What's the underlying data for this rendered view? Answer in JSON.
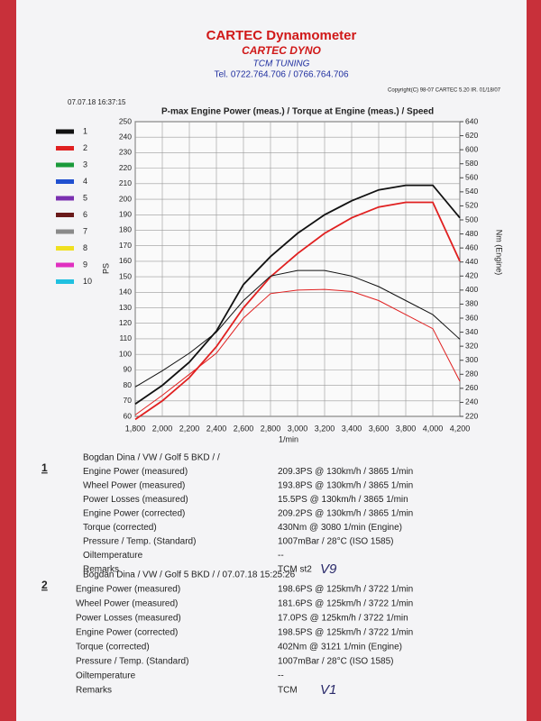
{
  "header": {
    "title": "CARTEC Dynamometer",
    "subtitle": "CARTEC DYNO",
    "tuner": "TCM TUNING",
    "phone": "Tel. 0722.764.706 / 0766.764.706",
    "timestamp": "07.07.18 16:37:15",
    "copyright": "Copyright(C) 98-07 CARTEC 5.20 IR. 01/18/07"
  },
  "chart_data": {
    "type": "line",
    "title": "P-max Engine Power (meas.) / Torque at Engine (meas.) / Speed",
    "x_label": "1/min",
    "y_label": "PS",
    "y2_label": "Nm (Engine)",
    "x": [
      1800,
      2000,
      2200,
      2400,
      2600,
      2800,
      3000,
      3200,
      3400,
      3600,
      3800,
      4000,
      4200
    ],
    "xlim": [
      1800,
      4200
    ],
    "xticks": [
      {
        "value": 1800,
        "label": "1,800"
      },
      {
        "value": 2000,
        "label": "2,000"
      },
      {
        "value": 2200,
        "label": "2,200"
      },
      {
        "value": 2400,
        "label": "2,400"
      },
      {
        "value": 2600,
        "label": "2,600"
      },
      {
        "value": 2800,
        "label": "2,800"
      },
      {
        "value": 3000,
        "label": "3,000"
      },
      {
        "value": 3200,
        "label": "3,200"
      },
      {
        "value": 3400,
        "label": "3,400"
      },
      {
        "value": 3600,
        "label": "3,600"
      },
      {
        "value": 3800,
        "label": "3,800"
      },
      {
        "value": 4000,
        "label": "4,000"
      },
      {
        "value": 4200,
        "label": "4,200"
      }
    ],
    "ylim": [
      60,
      250
    ],
    "yticks": [
      60,
      70,
      80,
      90,
      100,
      110,
      120,
      130,
      140,
      150,
      160,
      170,
      180,
      190,
      200,
      210,
      220,
      230,
      240,
      250
    ],
    "y2lim": [
      220,
      640
    ],
    "y2ticks": [
      220,
      240,
      260,
      280,
      300,
      320,
      340,
      360,
      380,
      400,
      420,
      440,
      460,
      480,
      500,
      520,
      540,
      560,
      580,
      600,
      620,
      640
    ],
    "grid": true,
    "series": [
      {
        "name": "1",
        "color": "#111111",
        "values": [
          68,
          80,
          95,
          115,
          145,
          163,
          178,
          190,
          199,
          206,
          209,
          209,
          188
        ]
      },
      {
        "name": "2",
        "color": "#e02020",
        "values": [
          58,
          70,
          85,
          105,
          130,
          150,
          165,
          178,
          188,
          195,
          198,
          198,
          160
        ]
      },
      {
        "name": "1",
        "color": "#111111",
        "axis": "y2",
        "values": [
          262,
          285,
          310,
          340,
          385,
          420,
          428,
          428,
          420,
          405,
          385,
          365,
          330
        ]
      },
      {
        "name": "2",
        "color": "#e02020",
        "axis": "y2",
        "values": [
          222,
          250,
          280,
          310,
          360,
          395,
          400,
          401,
          398,
          385,
          365,
          345,
          270
        ]
      }
    ],
    "legend": [
      {
        "label": "1",
        "color": "#111111"
      },
      {
        "label": "2",
        "color": "#e02020"
      },
      {
        "label": "3",
        "color": "#1a9a3a"
      },
      {
        "label": "4",
        "color": "#2050d0"
      },
      {
        "label": "5",
        "color": "#7a30b0"
      },
      {
        "label": "6",
        "color": "#6a1a1a"
      },
      {
        "label": "7",
        "color": "#8a8a8a"
      },
      {
        "label": "8",
        "color": "#f0e020"
      },
      {
        "label": "9",
        "color": "#e030c0"
      },
      {
        "label": "10",
        "color": "#20c0e0"
      }
    ]
  },
  "reports": [
    {
      "number": "1",
      "title": "Bogdan Dina / VW / Golf 5 BKD /  /",
      "handwritten": "V9",
      "rows": [
        [
          "Engine Power (measured)",
          "209.3PS @ 130km/h / 3865 1/min"
        ],
        [
          "Wheel Power (measured)",
          "193.8PS @ 130km/h / 3865 1/min"
        ],
        [
          "Power Losses (measured)",
          "15.5PS @ 130km/h / 3865 1/min"
        ],
        [
          "Engine Power (corrected)",
          "209.2PS @ 130km/h / 3865 1/min"
        ],
        [
          "Torque (corrected)",
          "430Nm @ 3080 1/min (Engine)"
        ],
        [
          "Pressure / Temp. (Standard)",
          "1007mBar / 28°C   (ISO 1585)"
        ],
        [
          "Oiltemperature",
          "--"
        ],
        [
          "Remarks",
          "TCM st2"
        ]
      ]
    },
    {
      "number": "2",
      "title": "Bogdan Dina / VW / Golf 5 BKD /  / 07.07.18 15:25:26",
      "handwritten": "V1",
      "rows": [
        [
          "Engine Power (measured)",
          "198.6PS @ 125km/h / 3722 1/min"
        ],
        [
          "Wheel Power (measured)",
          "181.6PS @ 125km/h / 3722 1/min"
        ],
        [
          "Power Losses (measured)",
          "17.0PS @ 125km/h / 3722 1/min"
        ],
        [
          "Engine Power (corrected)",
          "198.5PS @ 125km/h / 3722 1/min"
        ],
        [
          "Torque (corrected)",
          "402Nm @ 3121 1/min (Engine)"
        ],
        [
          "Pressure / Temp. (Standard)",
          "1007mBar / 28°C   (ISO 1585)"
        ],
        [
          "Oiltemperature",
          "--"
        ],
        [
          "Remarks",
          "TCM"
        ]
      ]
    }
  ]
}
